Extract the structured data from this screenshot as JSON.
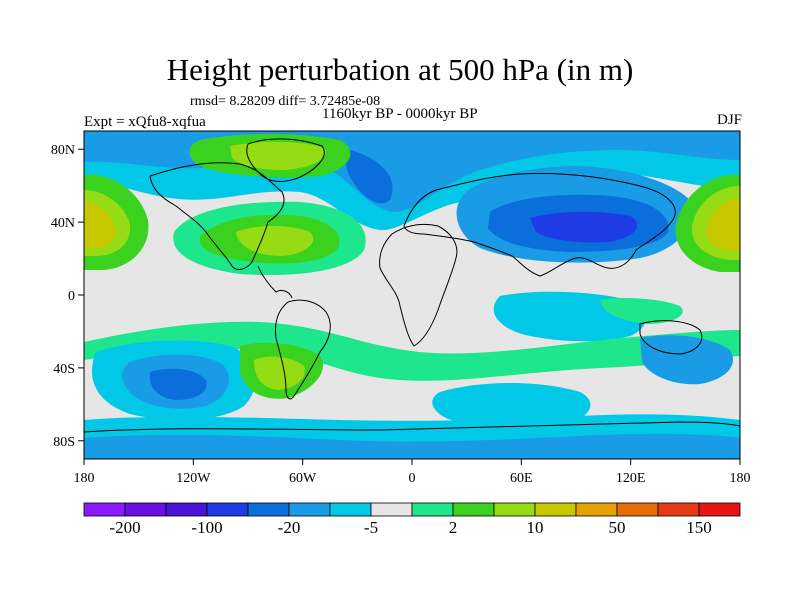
{
  "title": "Height perturbation at 500 hPa (in m)",
  "stats": "rmsd= 8.28209 diff= 3.72485e-08",
  "period": "1160kyr BP - 0000kyr BP",
  "experiment": "Expt = xQfu8-xqfua",
  "season": "DJF",
  "map": {
    "x_ticks": [
      "180",
      "120W",
      "60W",
      "0",
      "60E",
      "120E",
      "180"
    ],
    "y_ticks": [
      "80N",
      "40N",
      "0",
      "40S",
      "80S"
    ],
    "background_color": "#e6e6e6"
  },
  "colorbar": {
    "colors": [
      "#8c1aff",
      "#6a0fe6",
      "#4b12d9",
      "#1f3be6",
      "#0a6edb",
      "#1a9be6",
      "#00c8e6",
      "#e6e6e6",
      "#1ee68c",
      "#3ad21e",
      "#96dc14",
      "#c8c800",
      "#e6a000",
      "#e66e0a",
      "#e63c14",
      "#e61414"
    ],
    "labels": [
      "-200",
      "-100",
      "-20",
      "-5",
      "2",
      "10",
      "50",
      "150"
    ]
  }
}
